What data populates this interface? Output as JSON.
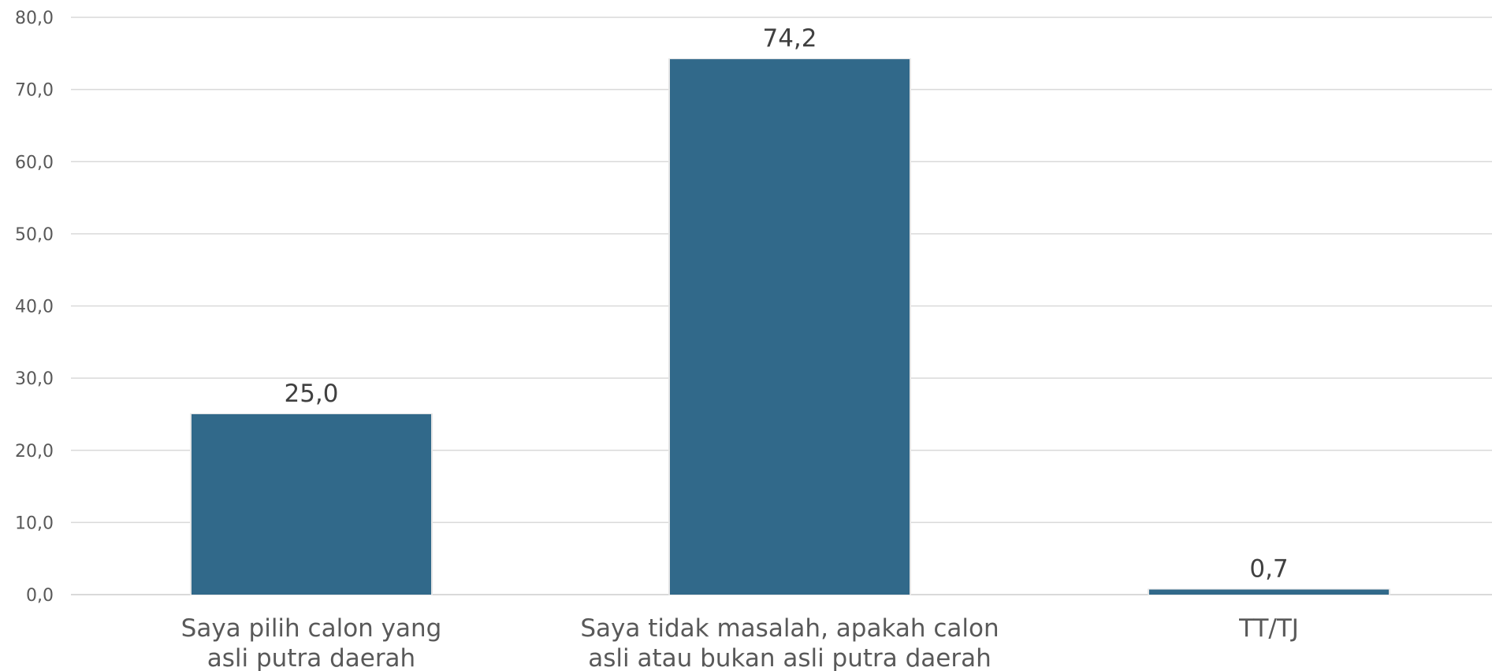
{
  "chart_data": {
    "type": "bar",
    "categories": [
      [
        "Saya pilih calon yang",
        "asli putra daerah"
      ],
      [
        "Saya tidak masalah, apakah calon",
        "asli atau bukan asli putra daerah"
      ],
      [
        "TT/TJ"
      ]
    ],
    "values": [
      25.0,
      74.2,
      0.7
    ],
    "data_labels": [
      "25,0",
      "74,2",
      "0,7"
    ],
    "y_ticks": [
      "0,0",
      "10,0",
      "20,0",
      "30,0",
      "40,0",
      "50,0",
      "60,0",
      "70,0",
      "80,0"
    ],
    "ylim": [
      0,
      80
    ],
    "grid": true,
    "legend": "none",
    "bar_color": "#31698A",
    "grid_color": "#D9D9D9"
  }
}
